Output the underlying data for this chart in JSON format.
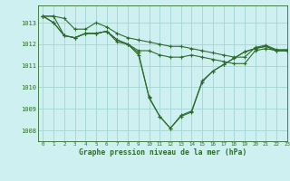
{
  "title": "Graphe pression niveau de la mer (hPa)",
  "background_color": "#cff0f0",
  "grid_color": "#a8d8d8",
  "line_color": "#2d6b2d",
  "xlim": [
    -0.5,
    23
  ],
  "ylim": [
    1007.5,
    1013.8
  ],
  "yticks": [
    1008,
    1009,
    1010,
    1011,
    1012,
    1013
  ],
  "xticks": [
    0,
    1,
    2,
    3,
    4,
    5,
    6,
    7,
    8,
    9,
    10,
    11,
    12,
    13,
    14,
    15,
    16,
    17,
    18,
    19,
    20,
    21,
    22,
    23
  ],
  "series": [
    [
      1013.3,
      1013.3,
      1013.2,
      1012.7,
      1012.7,
      1013.0,
      1012.8,
      1012.5,
      1012.3,
      1012.2,
      1012.1,
      1012.0,
      1011.9,
      1011.9,
      1011.8,
      1011.7,
      1011.6,
      1011.5,
      1011.4,
      1011.4,
      1011.85,
      1011.95,
      1011.75,
      1011.75
    ],
    [
      1013.3,
      1013.0,
      1012.4,
      1012.3,
      1012.5,
      1012.5,
      1012.6,
      1012.2,
      1012.0,
      1011.7,
      1011.7,
      1011.5,
      1011.4,
      1011.4,
      1011.5,
      1011.4,
      1011.3,
      1011.2,
      1011.1,
      1011.1,
      1011.7,
      1011.8,
      1011.7,
      1011.7
    ],
    [
      1013.3,
      1013.0,
      1012.4,
      1012.3,
      1012.5,
      1012.5,
      1012.6,
      1012.2,
      1012.0,
      1011.5,
      1009.55,
      1008.65,
      1008.1,
      1008.65,
      1008.85,
      1010.25,
      1010.75,
      1011.05,
      1011.35,
      1011.65,
      1011.8,
      1011.9,
      1011.7,
      1011.7
    ],
    [
      1013.3,
      1013.3,
      1012.4,
      1012.3,
      1012.5,
      1012.5,
      1012.6,
      1012.1,
      1012.0,
      1011.6,
      1009.5,
      1008.65,
      1008.1,
      1008.7,
      1008.9,
      1010.3,
      1010.75,
      1011.05,
      1011.35,
      1011.65,
      1011.8,
      1011.9,
      1011.7,
      1011.7
    ]
  ]
}
